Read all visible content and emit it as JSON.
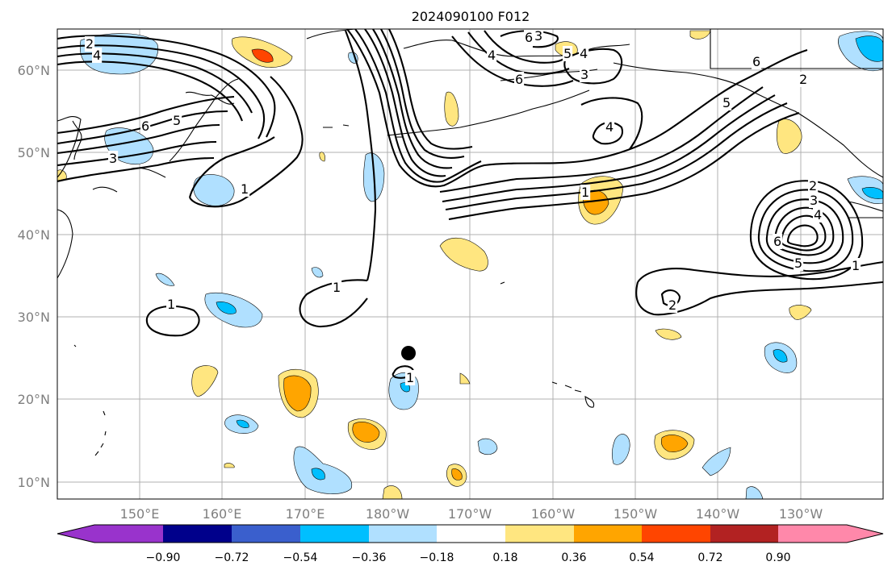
{
  "title": "2024090100 F012",
  "axes": {
    "lat_labels": [
      "60°N",
      "50°N",
      "40°N",
      "30°N",
      "20°N",
      "10°N"
    ],
    "lon_labels": [
      "150°E",
      "160°E",
      "170°E",
      "180°W",
      "170°W",
      "160°W",
      "150°W",
      "140°W",
      "130°W"
    ]
  },
  "colorbar": {
    "ticks": [
      "−0.90",
      "−0.72",
      "−0.54",
      "−0.36",
      "−0.18",
      "0.18",
      "0.36",
      "0.54",
      "0.72",
      "0.90"
    ],
    "colors": [
      "#9933cc",
      "#00008b",
      "#3a5fcd",
      "#00bfff",
      "#b0e0ff",
      "#ffffff",
      "#ffe680",
      "#ffa500",
      "#ff4500",
      "#b22222",
      "#ff88aa"
    ]
  },
  "contour_labels": [
    "2",
    "4",
    "6",
    "5",
    "3",
    "1",
    "1",
    "1",
    "1",
    "6",
    "4",
    "3",
    "6",
    "5",
    "4",
    "3",
    "4",
    "1",
    "2",
    "6",
    "5",
    "2",
    "3",
    "4",
    "6",
    "5",
    "1",
    "2"
  ],
  "marker": "storm-center-dot"
}
